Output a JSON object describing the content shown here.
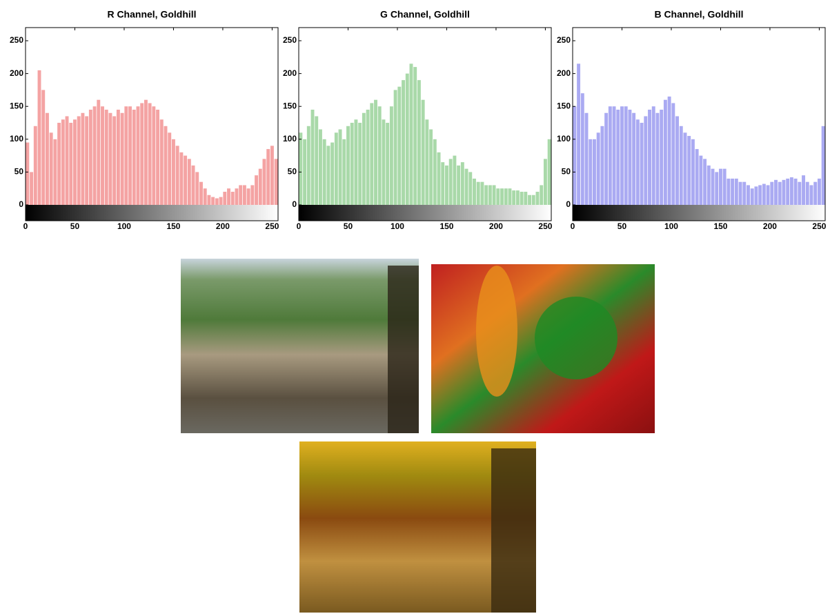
{
  "chart_data": [
    {
      "type": "bar",
      "title": "R Channel, Goldhill",
      "color": "#f4a3a3",
      "x": [
        0,
        4,
        8,
        12,
        16,
        20,
        24,
        28,
        32,
        36,
        40,
        44,
        48,
        52,
        56,
        60,
        64,
        68,
        72,
        76,
        80,
        84,
        88,
        92,
        96,
        100,
        104,
        108,
        112,
        116,
        120,
        124,
        128,
        132,
        136,
        140,
        144,
        148,
        152,
        156,
        160,
        164,
        168,
        172,
        176,
        180,
        184,
        188,
        192,
        196,
        200,
        204,
        208,
        212,
        216,
        220,
        224,
        228,
        232,
        236,
        240,
        244,
        248,
        252
      ],
      "values": [
        95,
        50,
        120,
        205,
        175,
        140,
        110,
        100,
        125,
        130,
        135,
        125,
        130,
        135,
        140,
        135,
        145,
        150,
        160,
        150,
        145,
        140,
        135,
        145,
        140,
        150,
        150,
        145,
        150,
        155,
        160,
        155,
        150,
        145,
        130,
        120,
        110,
        100,
        90,
        80,
        75,
        70,
        60,
        50,
        35,
        25,
        15,
        12,
        10,
        12,
        20,
        25,
        20,
        25,
        30,
        30,
        25,
        30,
        45,
        55,
        70,
        85,
        90,
        70
      ],
      "xlim": [
        0,
        256
      ],
      "ylim": [
        0,
        270
      ],
      "xticks": [
        0,
        50,
        100,
        150,
        200,
        250
      ],
      "yticks": [
        0,
        50,
        100,
        150,
        200,
        250
      ]
    },
    {
      "type": "bar",
      "title": "G Channel, Goldhill",
      "color": "#a9d9a9",
      "x": [
        0,
        4,
        8,
        12,
        16,
        20,
        24,
        28,
        32,
        36,
        40,
        44,
        48,
        52,
        56,
        60,
        64,
        68,
        72,
        76,
        80,
        84,
        88,
        92,
        96,
        100,
        104,
        108,
        112,
        116,
        120,
        124,
        128,
        132,
        136,
        140,
        144,
        148,
        152,
        156,
        160,
        164,
        168,
        172,
        176,
        180,
        184,
        188,
        192,
        196,
        200,
        204,
        208,
        212,
        216,
        220,
        224,
        228,
        232,
        236,
        240,
        244,
        248,
        252
      ],
      "values": [
        110,
        100,
        120,
        145,
        135,
        115,
        100,
        90,
        95,
        110,
        115,
        100,
        120,
        125,
        130,
        125,
        140,
        145,
        155,
        160,
        150,
        130,
        125,
        150,
        175,
        180,
        190,
        200,
        215,
        210,
        190,
        160,
        130,
        115,
        100,
        80,
        65,
        60,
        70,
        75,
        60,
        65,
        55,
        50,
        40,
        35,
        35,
        30,
        30,
        30,
        25,
        25,
        25,
        25,
        22,
        22,
        20,
        20,
        15,
        15,
        20,
        30,
        70,
        100
      ],
      "xlim": [
        0,
        256
      ],
      "ylim": [
        0,
        270
      ],
      "xticks": [
        0,
        50,
        100,
        150,
        200,
        250
      ],
      "yticks": [
        0,
        50,
        100,
        150,
        200,
        250
      ]
    },
    {
      "type": "bar",
      "title": "B Channel, Goldhill",
      "color": "#aaaaf2",
      "x": [
        0,
        4,
        8,
        12,
        16,
        20,
        24,
        28,
        32,
        36,
        40,
        44,
        48,
        52,
        56,
        60,
        64,
        68,
        72,
        76,
        80,
        84,
        88,
        92,
        96,
        100,
        104,
        108,
        112,
        116,
        120,
        124,
        128,
        132,
        136,
        140,
        144,
        148,
        152,
        156,
        160,
        164,
        168,
        172,
        176,
        180,
        184,
        188,
        192,
        196,
        200,
        204,
        208,
        212,
        216,
        220,
        224,
        228,
        232,
        236,
        240,
        244,
        248,
        252
      ],
      "values": [
        150,
        215,
        170,
        140,
        100,
        100,
        110,
        120,
        140,
        150,
        150,
        145,
        150,
        150,
        145,
        140,
        130,
        125,
        135,
        145,
        150,
        140,
        145,
        160,
        165,
        155,
        135,
        120,
        110,
        105,
        100,
        85,
        75,
        70,
        60,
        55,
        50,
        55,
        55,
        40,
        40,
        40,
        35,
        35,
        30,
        25,
        28,
        30,
        32,
        30,
        35,
        38,
        35,
        38,
        40,
        42,
        40,
        35,
        45,
        35,
        30,
        35,
        40,
        120
      ],
      "xlim": [
        0,
        256
      ],
      "ylim": [
        0,
        270
      ],
      "xticks": [
        0,
        50,
        100,
        150,
        200,
        250
      ],
      "yticks": [
        0,
        50,
        100,
        150,
        200,
        250
      ]
    }
  ]
}
